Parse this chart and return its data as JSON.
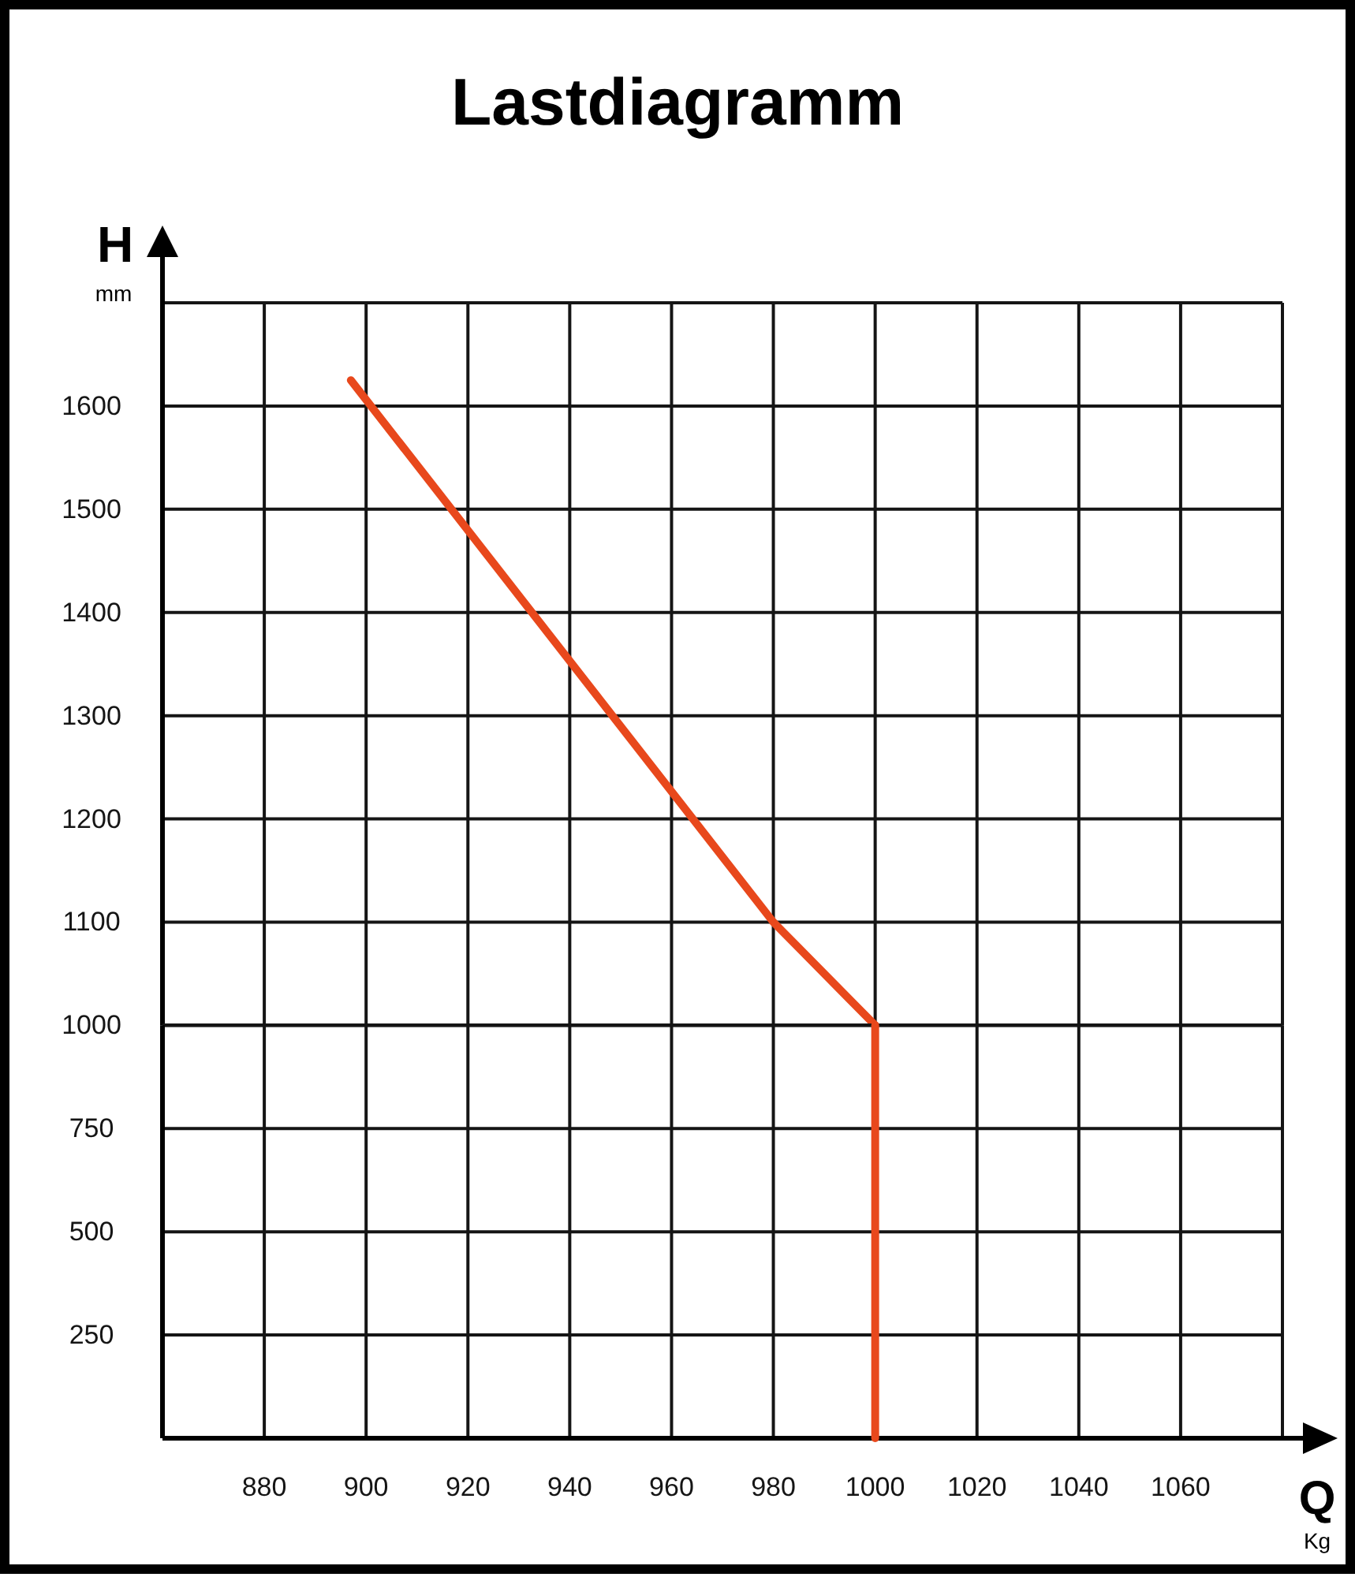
{
  "chart_data": [
    {
      "type": "line",
      "title": "Lastdiagramm",
      "ylabel": "H mm",
      "x": [
        897,
        980,
        1000
      ],
      "series": [
        {
          "color": "#e8481c",
          "values": [
            1625,
            1100,
            1000
          ]
        }
      ],
      "xlim": [
        860,
        1080
      ],
      "xticks": [
        880,
        900,
        920,
        940,
        960,
        980,
        1000,
        1020,
        1040,
        1060
      ],
      "ylim": [
        1000,
        1700
      ],
      "yticks": [
        1100,
        1200,
        1300,
        1400,
        1500,
        1600
      ],
      "tick_labels": "y",
      "grid": true,
      "line_style": "solid"
    },
    {
      "type": "line",
      "xlabel": "Q Kg",
      "x": [
        1000,
        1000
      ],
      "series": [
        {
          "color": "#e8481c",
          "values": [
            1000,
            0
          ]
        }
      ],
      "xlim": [
        860,
        1080
      ],
      "xticks": [
        880,
        900,
        920,
        940,
        960,
        980,
        1000,
        1020,
        1040,
        1060
      ],
      "ylim": [
        0,
        1000
      ],
      "yticks": [
        250,
        500,
        750,
        1000
      ],
      "grid": true,
      "line_style": "solid"
    }
  ]
}
